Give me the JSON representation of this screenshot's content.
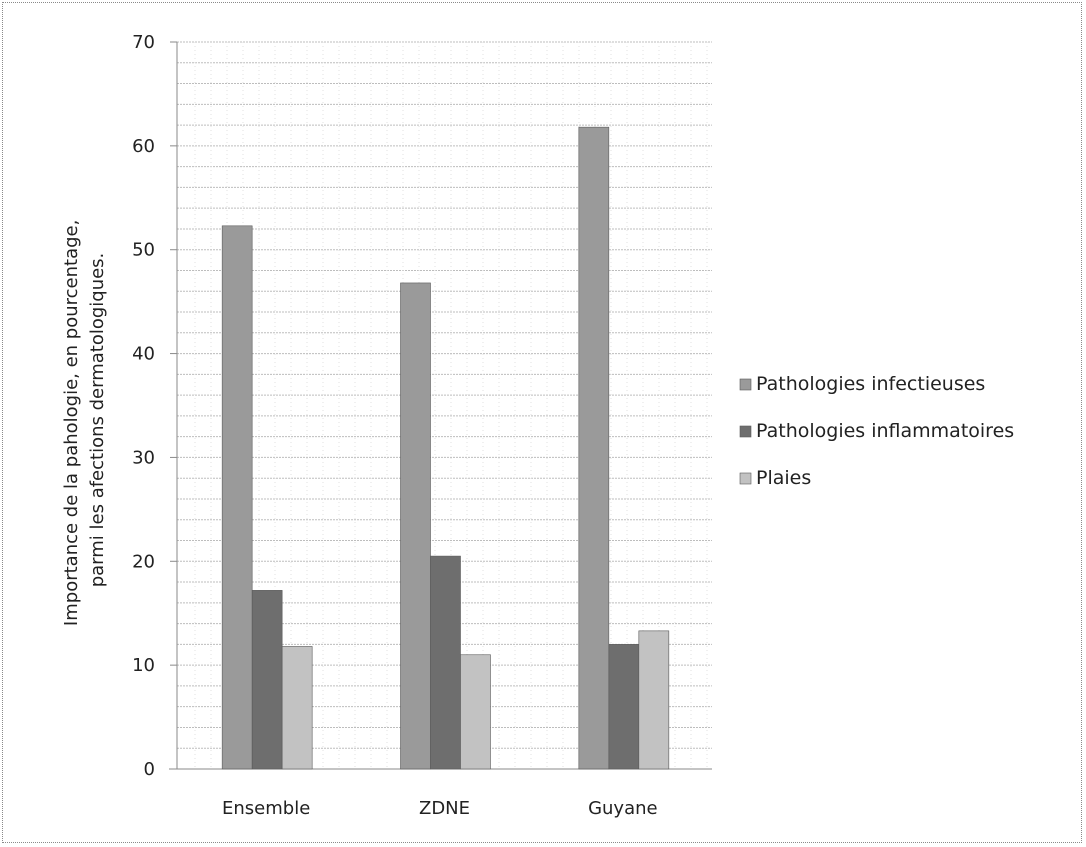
{
  "chart_data": {
    "type": "bar",
    "categories": [
      "Ensemble",
      "ZDNE",
      "Guyane"
    ],
    "series": [
      {
        "name": "Pathologies infectieuses",
        "values": [
          52.3,
          46.8,
          61.8
        ],
        "color": "#9a9a9a"
      },
      {
        "name": "Pathologies inflammatoires",
        "values": [
          17.2,
          20.5,
          12.0
        ],
        "color": "#6e6e6e"
      },
      {
        "name": "Plaies",
        "values": [
          11.8,
          11.0,
          13.3
        ],
        "color": "#c2c2c2"
      }
    ],
    "ylabel_lines": [
      "Importance  de la pahologie, en pourcentage,",
      "parmi les afections dermatologiques."
    ],
    "xlabel": "",
    "ylim": [
      0,
      70
    ],
    "yticks": [
      "0",
      "10",
      "20",
      "30",
      "40",
      "50",
      "60",
      "70"
    ],
    "grid": true,
    "legend_position": "right"
  }
}
